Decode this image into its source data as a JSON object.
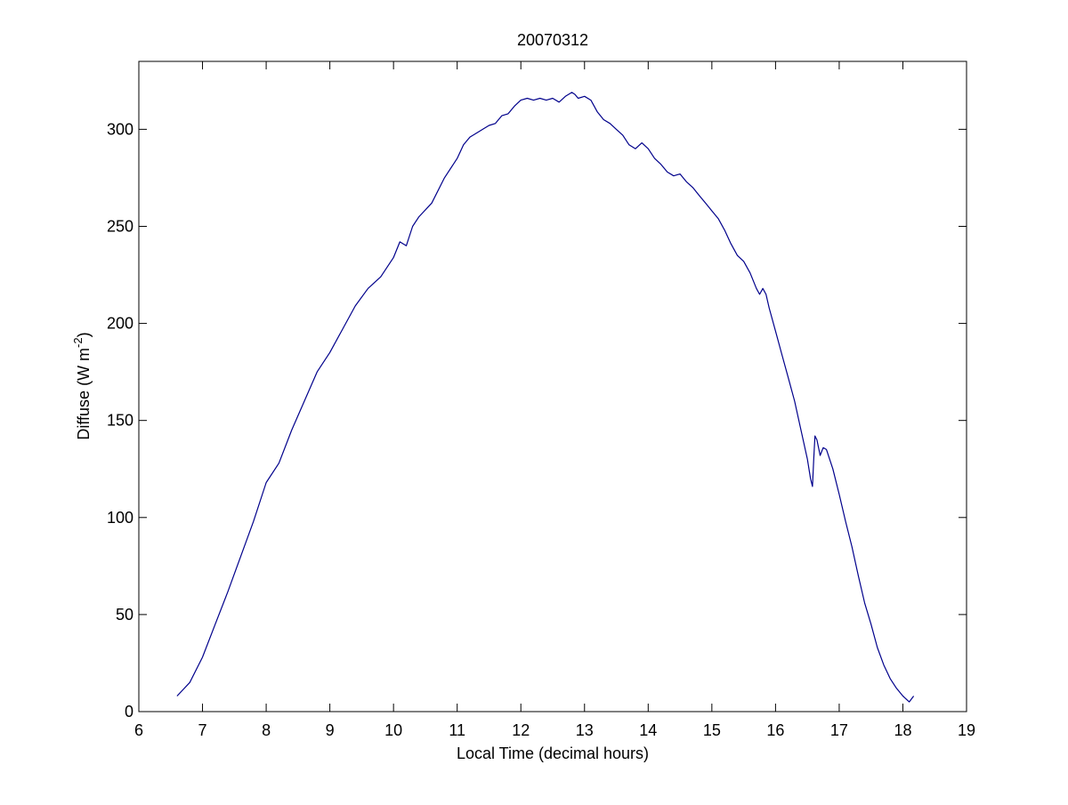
{
  "chart_data": {
    "type": "line",
    "title": "20070312",
    "xlabel": "Local Time (decimal hours)",
    "ylabel": "Diffuse (W m",
    "ylabel_superscript": "-2",
    "ylabel_suffix": ")",
    "xlim": [
      6,
      19
    ],
    "ylim": [
      0,
      335
    ],
    "xticks": [
      6,
      7,
      8,
      9,
      10,
      11,
      12,
      13,
      14,
      15,
      16,
      17,
      18,
      19
    ],
    "yticks": [
      0,
      50,
      100,
      150,
      200,
      250,
      300
    ],
    "grid": false,
    "line_color": "#00008B",
    "series": [
      {
        "x": [
          6.6,
          6.8,
          7.0,
          7.2,
          7.4,
          7.6,
          7.8,
          8.0,
          8.2,
          8.4,
          8.6,
          8.8,
          9.0,
          9.2,
          9.4,
          9.6,
          9.8,
          10.0,
          10.1,
          10.2,
          10.3,
          10.4,
          10.6,
          10.8,
          11.0,
          11.1,
          11.2,
          11.3,
          11.4,
          11.5,
          11.6,
          11.7,
          11.8,
          11.9,
          12.0,
          12.1,
          12.2,
          12.3,
          12.4,
          12.5,
          12.6,
          12.7,
          12.8,
          12.85,
          12.9,
          13.0,
          13.1,
          13.2,
          13.3,
          13.4,
          13.5,
          13.6,
          13.7,
          13.8,
          13.9,
          14.0,
          14.1,
          14.2,
          14.3,
          14.4,
          14.5,
          14.6,
          14.7,
          14.8,
          14.9,
          15.0,
          15.1,
          15.2,
          15.3,
          15.4,
          15.5,
          15.6,
          15.7,
          15.75,
          15.8,
          15.85,
          15.9,
          16.0,
          16.1,
          16.2,
          16.3,
          16.4,
          16.5,
          16.55,
          16.58,
          16.6,
          16.62,
          16.65,
          16.7,
          16.75,
          16.8,
          16.85,
          16.9,
          17.0,
          17.1,
          17.2,
          17.3,
          17.4,
          17.5,
          17.6,
          17.7,
          17.8,
          17.9,
          18.0,
          18.1,
          18.17
        ],
        "y": [
          8,
          15,
          28,
          45,
          62,
          80,
          98,
          118,
          128,
          145,
          160,
          175,
          185,
          197,
          209,
          218,
          224,
          234,
          242,
          240,
          250,
          255,
          262,
          275,
          285,
          292,
          296,
          298,
          300,
          302,
          303,
          307,
          308,
          312,
          315,
          316,
          315,
          316,
          315,
          316,
          314,
          317,
          319,
          318,
          316,
          317,
          315,
          309,
          305,
          303,
          300,
          297,
          292,
          290,
          293,
          290,
          285,
          282,
          278,
          276,
          277,
          273,
          270,
          266,
          262,
          258,
          254,
          248,
          241,
          235,
          232,
          226,
          218,
          215,
          218,
          215,
          208,
          196,
          184,
          172,
          160,
          145,
          130,
          120,
          116,
          130,
          142,
          140,
          132,
          136,
          135,
          130,
          125,
          112,
          98,
          85,
          70,
          56,
          45,
          33,
          24,
          17,
          12,
          8,
          5,
          8
        ]
      }
    ]
  }
}
